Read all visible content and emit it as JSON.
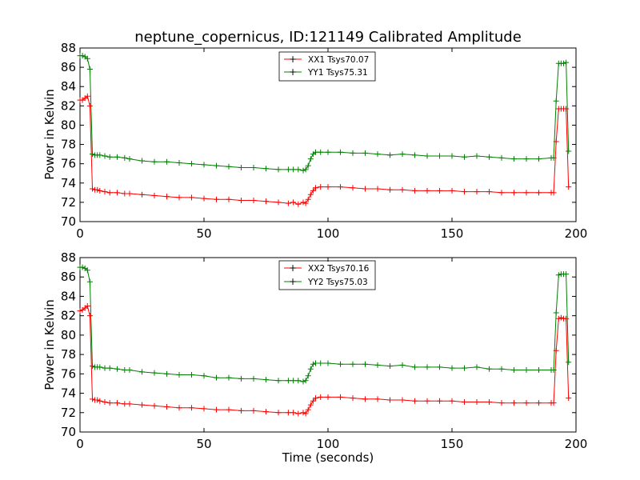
{
  "chart_data": [
    {
      "type": "line",
      "title": "neptune_copernicus, ID:121149 Calibrated Amplitude",
      "xlabel": "",
      "ylabel": "Power in Kelvin",
      "xlim": [
        0,
        200
      ],
      "ylim": [
        70,
        88
      ],
      "xticks": [
        "0",
        "50",
        "100",
        "150",
        "200"
      ],
      "yticks": [
        "70",
        "72",
        "74",
        "76",
        "78",
        "80",
        "82",
        "84",
        "86",
        "88"
      ],
      "grid": false,
      "legend_position": "top-center",
      "marker": "plus",
      "series": [
        {
          "name": "XX1 Tsys70.07",
          "color": "#ff0000",
          "points": [
            [
              0,
              82.6
            ],
            [
              1,
              82.6
            ],
            [
              2,
              82.8
            ],
            [
              3,
              83.0
            ],
            [
              4,
              82.0
            ],
            [
              5,
              73.4
            ],
            [
              6,
              73.3
            ],
            [
              7,
              73.3
            ],
            [
              8,
              73.2
            ],
            [
              10,
              73.1
            ],
            [
              12,
              73.0
            ],
            [
              15,
              73.0
            ],
            [
              18,
              72.9
            ],
            [
              20,
              72.9
            ],
            [
              25,
              72.8
            ],
            [
              30,
              72.7
            ],
            [
              35,
              72.6
            ],
            [
              40,
              72.5
            ],
            [
              45,
              72.5
            ],
            [
              50,
              72.4
            ],
            [
              55,
              72.3
            ],
            [
              60,
              72.3
            ],
            [
              65,
              72.2
            ],
            [
              70,
              72.2
            ],
            [
              75,
              72.1
            ],
            [
              80,
              72.0
            ],
            [
              84,
              71.9
            ],
            [
              86,
              72.0
            ],
            [
              88,
              71.8
            ],
            [
              90,
              72.0
            ],
            [
              91,
              71.9
            ],
            [
              92,
              72.3
            ],
            [
              93,
              72.8
            ],
            [
              94,
              73.2
            ],
            [
              95,
              73.5
            ],
            [
              97,
              73.6
            ],
            [
              100,
              73.6
            ],
            [
              105,
              73.6
            ],
            [
              110,
              73.5
            ],
            [
              115,
              73.4
            ],
            [
              120,
              73.4
            ],
            [
              125,
              73.3
            ],
            [
              130,
              73.3
            ],
            [
              135,
              73.2
            ],
            [
              140,
              73.2
            ],
            [
              145,
              73.2
            ],
            [
              150,
              73.2
            ],
            [
              155,
              73.1
            ],
            [
              160,
              73.1
            ],
            [
              165,
              73.1
            ],
            [
              170,
              73.0
            ],
            [
              175,
              73.0
            ],
            [
              180,
              73.0
            ],
            [
              185,
              73.0
            ],
            [
              190,
              73.0
            ],
            [
              191,
              73.0
            ],
            [
              192,
              78.3
            ],
            [
              193,
              81.7
            ],
            [
              194,
              81.7
            ],
            [
              195,
              81.7
            ],
            [
              196,
              81.7
            ],
            [
              197,
              73.6
            ]
          ]
        },
        {
          "name": "YY1 Tsys75.31",
          "color": "#008000",
          "points": [
            [
              0,
              87.2
            ],
            [
              1,
              87.2
            ],
            [
              2,
              87.1
            ],
            [
              3,
              86.9
            ],
            [
              4,
              85.8
            ],
            [
              5,
              77.0
            ],
            [
              6,
              76.9
            ],
            [
              7,
              76.9
            ],
            [
              8,
              76.9
            ],
            [
              10,
              76.8
            ],
            [
              12,
              76.7
            ],
            [
              15,
              76.7
            ],
            [
              18,
              76.6
            ],
            [
              20,
              76.5
            ],
            [
              25,
              76.3
            ],
            [
              30,
              76.2
            ],
            [
              35,
              76.2
            ],
            [
              40,
              76.1
            ],
            [
              45,
              76.0
            ],
            [
              50,
              75.9
            ],
            [
              55,
              75.8
            ],
            [
              60,
              75.7
            ],
            [
              65,
              75.6
            ],
            [
              70,
              75.6
            ],
            [
              75,
              75.5
            ],
            [
              80,
              75.4
            ],
            [
              84,
              75.4
            ],
            [
              86,
              75.4
            ],
            [
              88,
              75.4
            ],
            [
              90,
              75.3
            ],
            [
              91,
              75.4
            ],
            [
              92,
              75.8
            ],
            [
              93,
              76.5
            ],
            [
              94,
              77.0
            ],
            [
              95,
              77.2
            ],
            [
              97,
              77.2
            ],
            [
              100,
              77.2
            ],
            [
              105,
              77.2
            ],
            [
              110,
              77.1
            ],
            [
              115,
              77.1
            ],
            [
              120,
              77.0
            ],
            [
              125,
              76.9
            ],
            [
              130,
              77.0
            ],
            [
              135,
              76.9
            ],
            [
              140,
              76.8
            ],
            [
              145,
              76.8
            ],
            [
              150,
              76.8
            ],
            [
              155,
              76.7
            ],
            [
              160,
              76.8
            ],
            [
              165,
              76.7
            ],
            [
              170,
              76.6
            ],
            [
              175,
              76.5
            ],
            [
              180,
              76.5
            ],
            [
              185,
              76.5
            ],
            [
              190,
              76.6
            ],
            [
              191,
              76.6
            ],
            [
              192,
              82.5
            ],
            [
              193,
              86.4
            ],
            [
              194,
              86.4
            ],
            [
              195,
              86.4
            ],
            [
              196,
              86.5
            ],
            [
              197,
              77.3
            ]
          ]
        }
      ]
    },
    {
      "type": "line",
      "title": "",
      "xlabel": "Time (seconds)",
      "ylabel": "Power in Kelvin",
      "xlim": [
        0,
        200
      ],
      "ylim": [
        70,
        88
      ],
      "xticks": [
        "0",
        "50",
        "100",
        "150",
        "200"
      ],
      "yticks": [
        "70",
        "72",
        "74",
        "76",
        "78",
        "80",
        "82",
        "84",
        "86",
        "88"
      ],
      "grid": false,
      "legend_position": "top-center",
      "marker": "plus",
      "series": [
        {
          "name": "XX2 Tsys70.16",
          "color": "#ff0000",
          "points": [
            [
              0,
              82.5
            ],
            [
              1,
              82.6
            ],
            [
              2,
              82.8
            ],
            [
              3,
              83.0
            ],
            [
              4,
              82.0
            ],
            [
              5,
              73.4
            ],
            [
              6,
              73.3
            ],
            [
              7,
              73.3
            ],
            [
              8,
              73.2
            ],
            [
              10,
              73.1
            ],
            [
              12,
              73.0
            ],
            [
              15,
              73.0
            ],
            [
              18,
              72.9
            ],
            [
              20,
              72.9
            ],
            [
              25,
              72.8
            ],
            [
              30,
              72.7
            ],
            [
              35,
              72.6
            ],
            [
              40,
              72.5
            ],
            [
              45,
              72.5
            ],
            [
              50,
              72.4
            ],
            [
              55,
              72.3
            ],
            [
              60,
              72.3
            ],
            [
              65,
              72.2
            ],
            [
              70,
              72.2
            ],
            [
              75,
              72.1
            ],
            [
              80,
              72.0
            ],
            [
              84,
              72.0
            ],
            [
              86,
              72.0
            ],
            [
              88,
              71.9
            ],
            [
              90,
              72.0
            ],
            [
              91,
              71.9
            ],
            [
              92,
              72.3
            ],
            [
              93,
              72.8
            ],
            [
              94,
              73.2
            ],
            [
              95,
              73.5
            ],
            [
              97,
              73.6
            ],
            [
              100,
              73.6
            ],
            [
              105,
              73.6
            ],
            [
              110,
              73.5
            ],
            [
              115,
              73.4
            ],
            [
              120,
              73.4
            ],
            [
              125,
              73.3
            ],
            [
              130,
              73.3
            ],
            [
              135,
              73.2
            ],
            [
              140,
              73.2
            ],
            [
              145,
              73.2
            ],
            [
              150,
              73.2
            ],
            [
              155,
              73.1
            ],
            [
              160,
              73.1
            ],
            [
              165,
              73.1
            ],
            [
              170,
              73.0
            ],
            [
              175,
              73.0
            ],
            [
              180,
              73.0
            ],
            [
              185,
              73.0
            ],
            [
              190,
              73.0
            ],
            [
              191,
              73.0
            ],
            [
              192,
              78.4
            ],
            [
              193,
              81.7
            ],
            [
              194,
              81.8
            ],
            [
              195,
              81.7
            ],
            [
              196,
              81.7
            ],
            [
              197,
              73.5
            ]
          ]
        },
        {
          "name": "YY2 Tsys75.03",
          "color": "#008000",
          "points": [
            [
              0,
              87.0
            ],
            [
              1,
              87.0
            ],
            [
              2,
              86.9
            ],
            [
              3,
              86.7
            ],
            [
              4,
              85.5
            ],
            [
              5,
              76.8
            ],
            [
              6,
              76.7
            ],
            [
              7,
              76.7
            ],
            [
              8,
              76.7
            ],
            [
              10,
              76.6
            ],
            [
              12,
              76.6
            ],
            [
              15,
              76.5
            ],
            [
              18,
              76.4
            ],
            [
              20,
              76.4
            ],
            [
              25,
              76.2
            ],
            [
              30,
              76.1
            ],
            [
              35,
              76.0
            ],
            [
              40,
              75.9
            ],
            [
              45,
              75.9
            ],
            [
              50,
              75.8
            ],
            [
              55,
              75.6
            ],
            [
              60,
              75.6
            ],
            [
              65,
              75.5
            ],
            [
              70,
              75.5
            ],
            [
              75,
              75.4
            ],
            [
              80,
              75.3
            ],
            [
              84,
              75.3
            ],
            [
              86,
              75.3
            ],
            [
              88,
              75.3
            ],
            [
              90,
              75.2
            ],
            [
              91,
              75.3
            ],
            [
              92,
              75.8
            ],
            [
              93,
              76.5
            ],
            [
              94,
              77.0
            ],
            [
              95,
              77.1
            ],
            [
              97,
              77.1
            ],
            [
              100,
              77.1
            ],
            [
              105,
              77.0
            ],
            [
              110,
              77.0
            ],
            [
              115,
              77.0
            ],
            [
              120,
              76.9
            ],
            [
              125,
              76.8
            ],
            [
              130,
              76.9
            ],
            [
              135,
              76.7
            ],
            [
              140,
              76.7
            ],
            [
              145,
              76.7
            ],
            [
              150,
              76.6
            ],
            [
              155,
              76.6
            ],
            [
              160,
              76.7
            ],
            [
              165,
              76.5
            ],
            [
              170,
              76.5
            ],
            [
              175,
              76.4
            ],
            [
              180,
              76.4
            ],
            [
              185,
              76.4
            ],
            [
              190,
              76.4
            ],
            [
              191,
              76.4
            ],
            [
              192,
              82.3
            ],
            [
              193,
              86.2
            ],
            [
              194,
              86.3
            ],
            [
              195,
              86.3
            ],
            [
              196,
              86.3
            ],
            [
              197,
              77.2
            ]
          ]
        }
      ]
    }
  ]
}
